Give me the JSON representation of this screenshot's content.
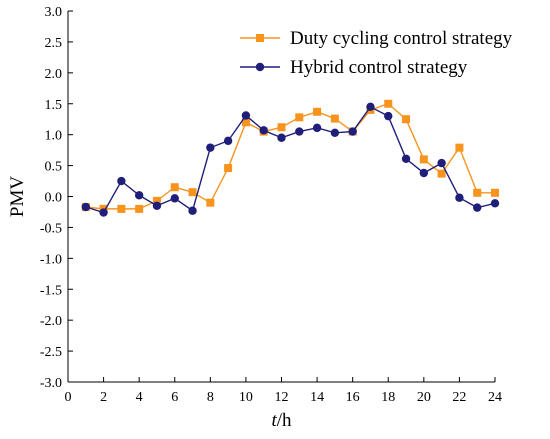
{
  "chart_data": {
    "type": "line",
    "xlabel_italic": "t",
    "xlabel_unit": "/h",
    "ylabel": "PMV",
    "xlim": [
      0,
      24
    ],
    "ylim": [
      -3.0,
      3.0
    ],
    "x_ticks": [
      0,
      2,
      4,
      6,
      8,
      10,
      12,
      14,
      16,
      18,
      20,
      22,
      24
    ],
    "y_ticks": [
      3.0,
      2.5,
      2.0,
      1.5,
      1.0,
      0.5,
      0.0,
      -0.5,
      -1.0,
      -1.5,
      -2.0,
      -2.5,
      -3.0
    ],
    "y_tick_labels": [
      "3.0",
      "2.5",
      "2.0",
      "1.5",
      "1.0",
      "0.5",
      "0.0",
      "-0.5",
      "-1.0",
      "-1.5",
      "-2.0",
      "-2.5",
      "-3.0"
    ],
    "grid": false,
    "legend_position": "top-right",
    "x": [
      1,
      2,
      3,
      4,
      5,
      6,
      7,
      8,
      9,
      10,
      11,
      12,
      13,
      14,
      15,
      16,
      17,
      18,
      19,
      20,
      21,
      22,
      23,
      24
    ],
    "series": [
      {
        "name": "Duty cycling control strategy",
        "color": "#F7941D",
        "marker": "square",
        "values": [
          -0.17,
          -0.2,
          -0.2,
          -0.2,
          -0.07,
          0.15,
          0.07,
          -0.1,
          0.46,
          1.2,
          1.05,
          1.12,
          1.28,
          1.37,
          1.26,
          1.05,
          1.4,
          1.5,
          1.25,
          0.6,
          0.37,
          0.79,
          0.06,
          0.06
        ]
      },
      {
        "name": "Hybrid control strategy",
        "color": "#1F1F7A",
        "marker": "circle",
        "values": [
          -0.17,
          -0.26,
          0.25,
          0.02,
          -0.15,
          -0.03,
          -0.23,
          0.79,
          0.9,
          1.31,
          1.07,
          0.95,
          1.05,
          1.11,
          1.03,
          1.05,
          1.45,
          1.3,
          0.61,
          0.38,
          0.54,
          -0.02,
          -0.18,
          -0.11
        ]
      }
    ]
  }
}
